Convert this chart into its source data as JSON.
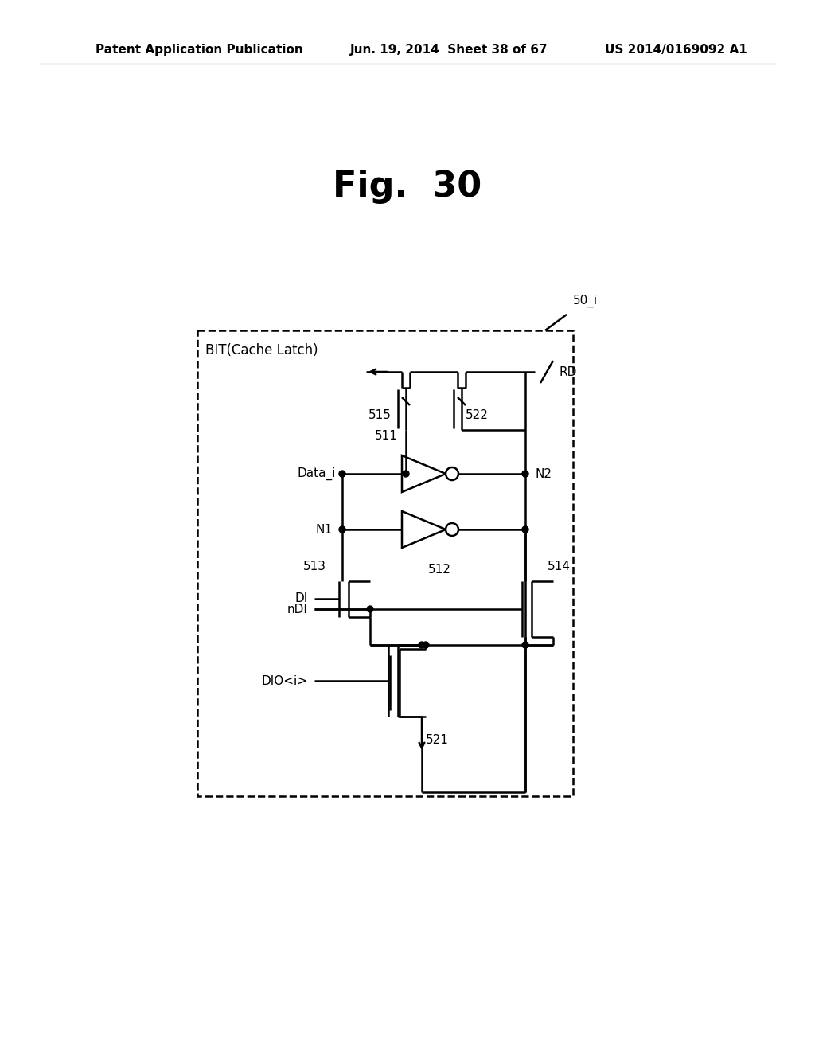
{
  "header_left": "Patent Application Publication",
  "header_center": "Jun. 19, 2014  Sheet 38 of 67",
  "header_right": "US 2014/0169092 A1",
  "fig_title": "Fig.  30",
  "box_label": "BIT(Cache Latch)",
  "label_50i": "50_i",
  "label_RD": "RD",
  "label_511": "511",
  "label_512": "512",
  "label_513": "513",
  "label_514": "514",
  "label_515": "515",
  "label_521": "521",
  "label_522": "522",
  "label_Datai": "Data_i",
  "label_N1": "N1",
  "label_N2": "N2",
  "label_DI": "DI",
  "label_nDI": "nDI",
  "label_DIO": "DIO<i>"
}
